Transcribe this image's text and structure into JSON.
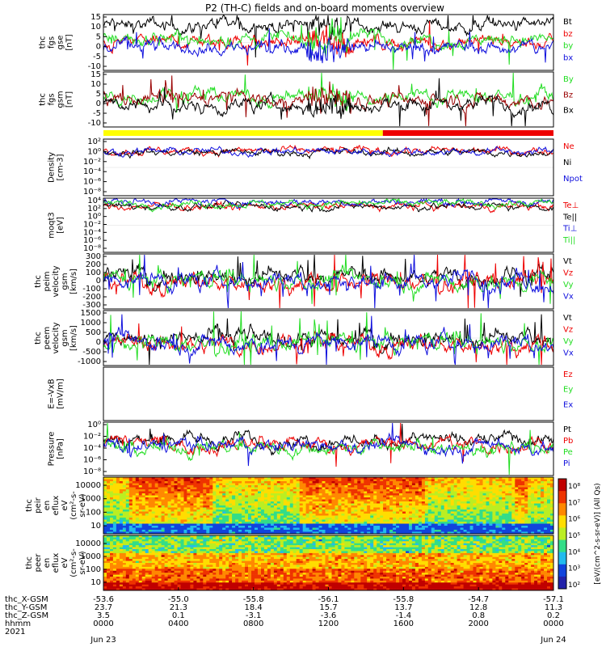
{
  "title": "P2 (TH-C) fields and on-board moments overview",
  "colors": {
    "black": "#000000",
    "red": "#ee0000",
    "green": "#22dd22",
    "blue": "#1010dd",
    "darkred": "#990000",
    "yellow": "#ffff00"
  },
  "chart_data": {
    "type": "line",
    "x_range": [
      "2021-06-23 00:00",
      "2021-06-24 00:00"
    ],
    "x_ticks": {
      "hhmm": [
        "0000",
        "0400",
        "0800",
        "1200",
        "1600",
        "2000",
        "0000"
      ],
      "thc_X-GSM": [
        "-53.6",
        "-55.0",
        "-55.8",
        "-56.1",
        "-55.8",
        "-54.7",
        "-57.1"
      ],
      "thc_Y-GSM": [
        "23.7",
        "21.3",
        "18.4",
        "15.7",
        "13.7",
        "12.8",
        "11.3"
      ],
      "thc_Z-GSM": [
        "3.5",
        "0.1",
        "-3.1",
        "-3.6",
        "-1.4",
        "0.8",
        "0.2"
      ],
      "dates": [
        "Jun 23",
        "Jun 24"
      ]
    },
    "x_row_labels": [
      "thc_X-GSM",
      "thc_Y-GSM",
      "thc_Z-GSM",
      "hhmm",
      "2021"
    ],
    "panels": [
      {
        "id": "fgs_gse",
        "ylabel": [
          "thc",
          "fgs",
          "gse",
          "[nT]"
        ],
        "ylim": [
          -15,
          15
        ],
        "yticks": [
          "15",
          "10",
          "5",
          "0",
          "-5",
          "-10"
        ],
        "series": [
          {
            "name": "Bt",
            "color": "#000000"
          },
          {
            "name": "bz",
            "color": "#ee0000"
          },
          {
            "name": "by",
            "color": "#22dd22"
          },
          {
            "name": "bx",
            "color": "#1010dd"
          }
        ]
      },
      {
        "id": "fgs_gsm",
        "ylabel": [
          "thc",
          "fgs",
          "gsm",
          "[nT]"
        ],
        "ylim": [
          -15,
          15
        ],
        "yticks": [
          "15",
          "10",
          "5",
          "0",
          "-5",
          "-10"
        ],
        "series": [
          {
            "name": "By",
            "color": "#22dd22"
          },
          {
            "name": "Bz",
            "color": "#990000"
          },
          {
            "name": "Bx",
            "color": "#000000"
          }
        ]
      },
      {
        "id": "density",
        "ylabel": [
          "Density",
          "[cm-3]"
        ],
        "log": true,
        "yticks": [
          "10²",
          "10⁰",
          "10⁻²",
          "10⁻⁴",
          "10⁻⁶",
          "10⁻⁸"
        ],
        "series": [
          {
            "name": "Ne",
            "color": "#ee0000"
          },
          {
            "name": "Ni",
            "color": "#000000"
          },
          {
            "name": "Npot",
            "color": "#1010dd"
          }
        ]
      },
      {
        "id": "temperature",
        "ylabel": [
          "moqt3",
          "[eV]"
        ],
        "log": true,
        "yticks": [
          "10⁴",
          "10²",
          "10⁰",
          "10⁻²",
          "10⁻⁴",
          "10⁻⁶",
          "10⁻⁸"
        ],
        "series": [
          {
            "name": "Te⊥",
            "color": "#ee0000"
          },
          {
            "name": "Te||",
            "color": "#000000"
          },
          {
            "name": "Ti⊥",
            "color": "#1010dd"
          },
          {
            "name": "Ti||",
            "color": "#22dd22"
          }
        ]
      },
      {
        "id": "peim_velocity",
        "ylabel": [
          "thc",
          "peim",
          "velocity",
          "gsm",
          "[km/s]"
        ],
        "ylim": [
          -300,
          300
        ],
        "yticks": [
          "300",
          "200",
          "100",
          "0",
          "-100",
          "-200",
          "-300"
        ],
        "series": [
          {
            "name": "Vt",
            "color": "#000000"
          },
          {
            "name": "Vz",
            "color": "#ee0000"
          },
          {
            "name": "Vy",
            "color": "#22dd22"
          },
          {
            "name": "Vx",
            "color": "#1010dd"
          }
        ]
      },
      {
        "id": "peem_velocity",
        "ylabel": [
          "thc",
          "peem",
          "velocity",
          "gsm",
          "[km/s]"
        ],
        "ylim": [
          -1000,
          1500
        ],
        "yticks": [
          "1500",
          "1000",
          "500",
          "0",
          "-500",
          "-1000"
        ],
        "series": [
          {
            "name": "Vt",
            "color": "#000000"
          },
          {
            "name": "Vz",
            "color": "#ee0000"
          },
          {
            "name": "Vy",
            "color": "#22dd22"
          },
          {
            "name": "Vx",
            "color": "#1010dd"
          }
        ]
      },
      {
        "id": "efield",
        "ylabel": [
          "E=-VxB",
          "[mV/m]"
        ],
        "ylim": [
          0,
          1
        ],
        "yticks": [],
        "series": [
          {
            "name": "Ez",
            "color": "#ee0000"
          },
          {
            "name": "Ey",
            "color": "#22dd22"
          },
          {
            "name": "Ex",
            "color": "#1010dd"
          }
        ]
      },
      {
        "id": "pressure",
        "ylabel": [
          "Pressure",
          "[nPa]"
        ],
        "log": true,
        "yticks": [
          "10⁰",
          "10⁻²",
          "10⁻⁴",
          "10⁻⁶",
          "10⁻⁸"
        ],
        "series": [
          {
            "name": "Pt",
            "color": "#000000"
          },
          {
            "name": "Pb",
            "color": "#ee0000"
          },
          {
            "name": "Pe",
            "color": "#22dd22"
          },
          {
            "name": "Pi",
            "color": "#1010dd"
          }
        ]
      },
      {
        "id": "peir_spec",
        "ylabel": [
          "thc",
          "peir",
          "en",
          "eflux",
          "eV",
          "(cm²-s-",
          "sr-eV)"
        ],
        "yticks": [
          "10000",
          "1000",
          "100",
          "10"
        ],
        "type": "heatmap"
      },
      {
        "id": "peer_spec",
        "ylabel": [
          "thc",
          "peer",
          "en",
          "eflux",
          "eV",
          "(cm²-s-",
          "sr-eV)"
        ],
        "yticks": [
          "10000",
          "1000",
          "100",
          "10"
        ],
        "type": "heatmap"
      }
    ],
    "status_bar": [
      {
        "color": "#ffff00",
        "from_hour": 0,
        "to_hour": 14.9
      },
      {
        "color": "#ee0000",
        "from_hour": 14.9,
        "to_hour": 24
      }
    ],
    "colorbar": {
      "label": "[eV/(cm^2-s-sr-eV)] (All Qs)",
      "ticks": [
        "10⁸",
        "10⁷",
        "10⁶",
        "10⁵",
        "10⁴",
        "10³",
        "10²"
      ]
    }
  }
}
